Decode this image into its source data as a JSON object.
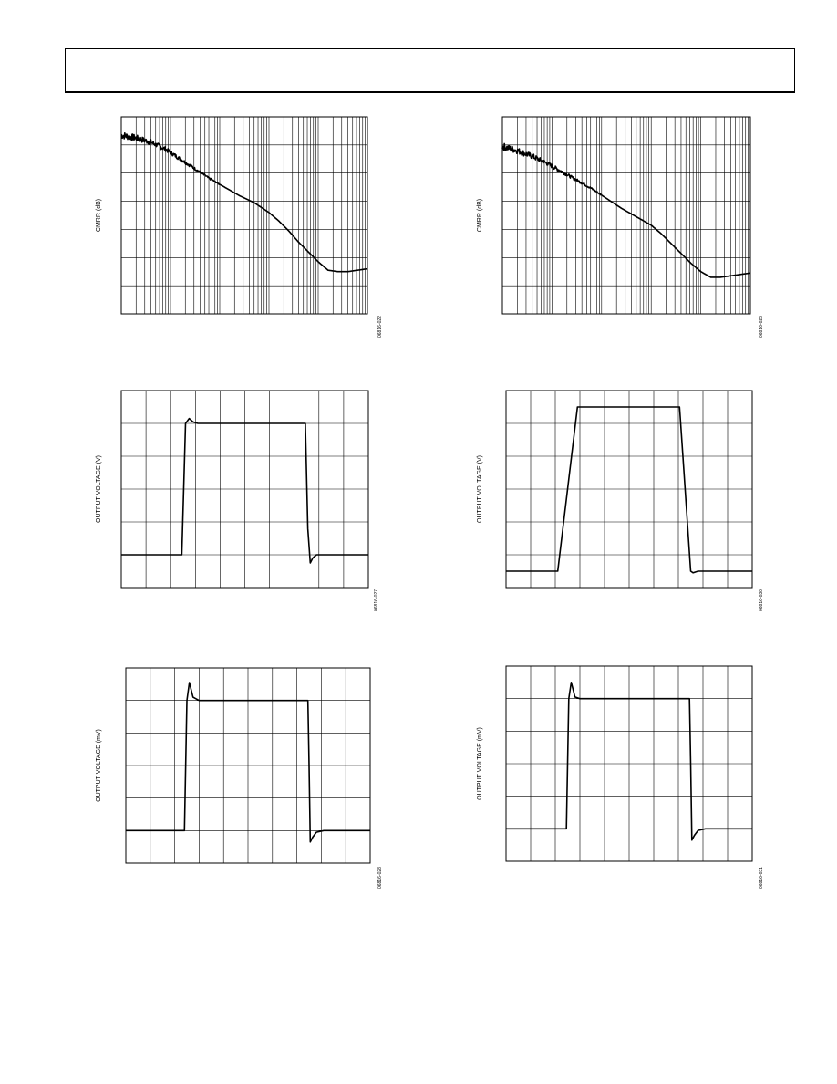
{
  "page": {
    "header_text": ""
  },
  "figures": [
    {
      "id": "fig-left-1",
      "figure_code": "06816-022"
    },
    {
      "id": "fig-right-1",
      "figure_code": "06816-026"
    },
    {
      "id": "fig-left-2",
      "figure_code": "06816-027"
    },
    {
      "id": "fig-right-2",
      "figure_code": "06816-030"
    },
    {
      "id": "fig-left-3",
      "figure_code": "06816-028"
    },
    {
      "id": "fig-right-3",
      "figure_code": "06816-031"
    }
  ],
  "chart_data": [
    {
      "type": "line",
      "id": "fig-left-1",
      "ylabel": "CMRR (dB)",
      "xlabel": "",
      "x_scale": "log",
      "x_decades": 5,
      "y_divisions": 7,
      "grid": true,
      "series": [
        {
          "x": [
            0,
            0.3,
            0.6,
            0.9,
            1.2,
            1.5,
            1.8,
            2.1,
            2.4,
            2.7,
            3.0,
            3.2,
            3.4,
            3.6,
            3.8,
            4.0,
            4.2,
            4.4,
            4.6,
            4.8,
            5.0
          ],
          "y": [
            6.35,
            6.25,
            6.1,
            5.85,
            5.5,
            5.15,
            4.8,
            4.5,
            4.2,
            3.95,
            3.6,
            3.3,
            2.95,
            2.55,
            2.2,
            1.85,
            1.55,
            1.5,
            1.5,
            1.55,
            1.6
          ],
          "noise_until": 2.0
        }
      ]
    },
    {
      "type": "line",
      "id": "fig-right-1",
      "ylabel": "CMRR (dB)",
      "xlabel": "",
      "x_scale": "log",
      "x_decades": 5,
      "y_divisions": 7,
      "grid": true,
      "series": [
        {
          "x": [
            0,
            0.3,
            0.6,
            0.9,
            1.2,
            1.5,
            1.8,
            2.1,
            2.4,
            2.7,
            3.0,
            3.2,
            3.4,
            3.6,
            3.8,
            4.0,
            4.2,
            4.4,
            4.6,
            4.8,
            5.0
          ],
          "y": [
            5.95,
            5.8,
            5.6,
            5.35,
            5.05,
            4.75,
            4.45,
            4.1,
            3.75,
            3.45,
            3.15,
            2.85,
            2.5,
            2.15,
            1.8,
            1.5,
            1.3,
            1.3,
            1.35,
            1.4,
            1.45
          ],
          "noise_until": 2.0
        }
      ]
    },
    {
      "type": "line",
      "id": "fig-left-2",
      "ylabel": "OUTPUT VOLTAGE (V)",
      "xlabel": "",
      "x_divisions": 10,
      "y_divisions": 6,
      "grid": true,
      "series": [
        {
          "x": [
            0,
            2.45,
            2.6,
            2.75,
            2.9,
            3.1,
            7.45,
            7.55,
            7.65,
            7.75,
            7.9,
            8.2,
            10
          ],
          "y": [
            1.0,
            1.0,
            5.0,
            5.15,
            5.05,
            5.0,
            5.0,
            1.8,
            0.75,
            0.9,
            1.0,
            1.0,
            1.0
          ]
        }
      ]
    },
    {
      "type": "line",
      "id": "fig-right-2",
      "ylabel": "OUTPUT VOLTAGE (V)",
      "xlabel": "",
      "x_divisions": 10,
      "y_divisions": 6,
      "grid": true,
      "series": [
        {
          "x": [
            0,
            2.1,
            2.9,
            3.0,
            7.05,
            7.5,
            7.6,
            7.8,
            10
          ],
          "y": [
            0.5,
            0.5,
            5.5,
            5.5,
            5.5,
            0.5,
            0.45,
            0.5,
            0.5
          ]
        }
      ]
    },
    {
      "type": "line",
      "id": "fig-left-3",
      "ylabel": "OUTPUT VOLTAGE (mV)",
      "xlabel": "",
      "x_divisions": 10,
      "y_divisions": 6,
      "grid": true,
      "series": [
        {
          "x": [
            0,
            2.4,
            2.5,
            2.6,
            2.75,
            3.0,
            7.45,
            7.5,
            7.55,
            7.65,
            7.8,
            8.1,
            10
          ],
          "y": [
            1.0,
            1.0,
            5.0,
            5.55,
            5.1,
            5.0,
            5.0,
            3.0,
            0.65,
            0.8,
            0.95,
            1.0,
            1.0
          ]
        }
      ]
    },
    {
      "type": "line",
      "id": "fig-right-3",
      "ylabel": "OUTPUT VOLTAGE (mV)",
      "xlabel": "",
      "x_divisions": 10,
      "y_divisions": 6,
      "grid": true,
      "series": [
        {
          "x": [
            0,
            2.45,
            2.55,
            2.65,
            2.8,
            3.0,
            7.45,
            7.5,
            7.55,
            7.65,
            7.8,
            8.1,
            10
          ],
          "y": [
            1.0,
            1.0,
            5.0,
            5.5,
            5.05,
            5.0,
            5.0,
            3.0,
            0.65,
            0.8,
            0.95,
            1.0,
            1.0
          ]
        }
      ]
    }
  ]
}
